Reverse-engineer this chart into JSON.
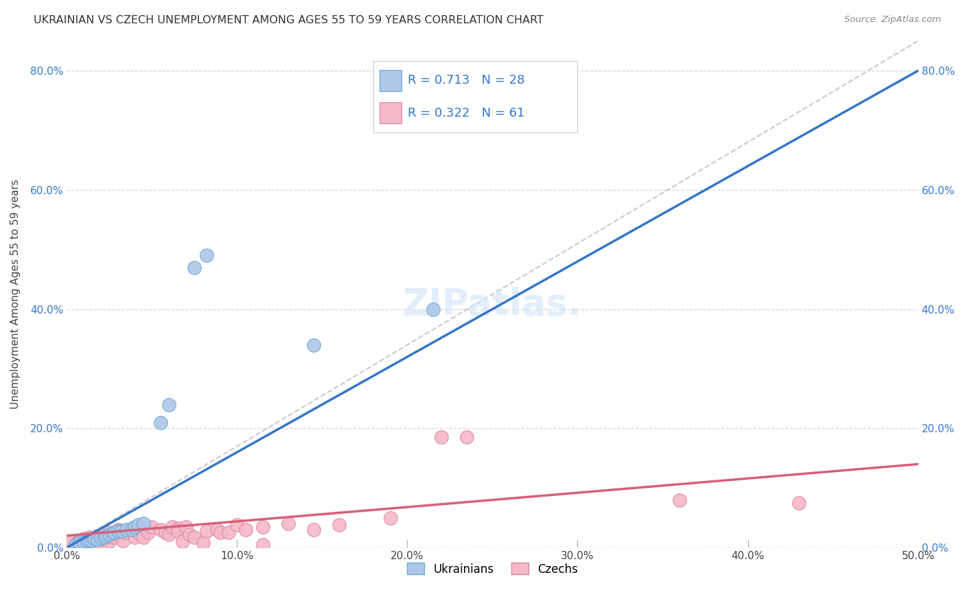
{
  "title": "UKRAINIAN VS CZECH UNEMPLOYMENT AMONG AGES 55 TO 59 YEARS CORRELATION CHART",
  "source": "Source: ZipAtlas.com",
  "ylabel": "Unemployment Among Ages 55 to 59 years",
  "xlim": [
    0.0,
    0.5
  ],
  "ylim": [
    0.0,
    0.85
  ],
  "xticks": [
    0.0,
    0.1,
    0.2,
    0.3,
    0.4,
    0.5
  ],
  "yticks": [
    0.0,
    0.2,
    0.4,
    0.6,
    0.8
  ],
  "background_color": "#ffffff",
  "grid_color": "#cccccc",
  "ukrainian_color": "#aec6e8",
  "czech_color": "#f4b8c8",
  "ukrainian_edge_color": "#6aaad4",
  "czech_edge_color": "#d888a0",
  "ukrainian_line_color": "#3577c8",
  "czech_line_color": "#d8607a",
  "diagonal_color": "#b8b8b8",
  "tick_color": "#3577c8",
  "label_color": "#444444",
  "title_color": "#333333",
  "source_color": "#888888",
  "ukrainians_label": "Ukrainians",
  "czechs_label": "Czechs",
  "ukrainian_R": 0.713,
  "ukrainian_N": 28,
  "czech_R": 0.322,
  "czech_N": 61,
  "ukr_line_x": [
    0.0,
    0.5
  ],
  "ukr_line_y": [
    0.0,
    0.8
  ],
  "cze_line_x": [
    0.0,
    0.5
  ],
  "cze_line_y": [
    0.02,
    0.14
  ],
  "ukrainian_points": [
    [
      0.005,
      0.005
    ],
    [
      0.007,
      0.006
    ],
    [
      0.008,
      0.008
    ],
    [
      0.01,
      0.008
    ],
    [
      0.012,
      0.01
    ],
    [
      0.013,
      0.012
    ],
    [
      0.015,
      0.012
    ],
    [
      0.016,
      0.015
    ],
    [
      0.018,
      0.014
    ],
    [
      0.02,
      0.016
    ],
    [
      0.022,
      0.018
    ],
    [
      0.023,
      0.02
    ],
    [
      0.025,
      0.022
    ],
    [
      0.027,
      0.024
    ],
    [
      0.028,
      0.026
    ],
    [
      0.03,
      0.028
    ],
    [
      0.032,
      0.028
    ],
    [
      0.035,
      0.03
    ],
    [
      0.038,
      0.03
    ],
    [
      0.04,
      0.035
    ],
    [
      0.042,
      0.038
    ],
    [
      0.045,
      0.04
    ],
    [
      0.055,
      0.21
    ],
    [
      0.06,
      0.24
    ],
    [
      0.075,
      0.47
    ],
    [
      0.082,
      0.49
    ],
    [
      0.145,
      0.34
    ],
    [
      0.215,
      0.4
    ]
  ],
  "czech_points": [
    [
      0.003,
      0.01
    ],
    [
      0.005,
      0.005
    ],
    [
      0.006,
      0.008
    ],
    [
      0.008,
      0.01
    ],
    [
      0.008,
      0.012
    ],
    [
      0.01,
      0.006
    ],
    [
      0.01,
      0.015
    ],
    [
      0.012,
      0.01
    ],
    [
      0.013,
      0.018
    ],
    [
      0.015,
      0.012
    ],
    [
      0.015,
      0.016
    ],
    [
      0.017,
      0.014
    ],
    [
      0.018,
      0.02
    ],
    [
      0.018,
      0.008
    ],
    [
      0.02,
      0.018
    ],
    [
      0.022,
      0.022
    ],
    [
      0.022,
      0.014
    ],
    [
      0.025,
      0.025
    ],
    [
      0.025,
      0.01
    ],
    [
      0.027,
      0.02
    ],
    [
      0.028,
      0.018
    ],
    [
      0.03,
      0.03
    ],
    [
      0.03,
      0.022
    ],
    [
      0.032,
      0.028
    ],
    [
      0.033,
      0.012
    ],
    [
      0.035,
      0.025
    ],
    [
      0.038,
      0.032
    ],
    [
      0.04,
      0.03
    ],
    [
      0.04,
      0.018
    ],
    [
      0.042,
      0.035
    ],
    [
      0.043,
      0.022
    ],
    [
      0.045,
      0.018
    ],
    [
      0.048,
      0.025
    ],
    [
      0.05,
      0.035
    ],
    [
      0.055,
      0.03
    ],
    [
      0.058,
      0.025
    ],
    [
      0.06,
      0.022
    ],
    [
      0.062,
      0.035
    ],
    [
      0.065,
      0.032
    ],
    [
      0.065,
      0.028
    ],
    [
      0.068,
      0.01
    ],
    [
      0.07,
      0.035
    ],
    [
      0.072,
      0.022
    ],
    [
      0.075,
      0.018
    ],
    [
      0.08,
      0.008
    ],
    [
      0.082,
      0.028
    ],
    [
      0.088,
      0.03
    ],
    [
      0.09,
      0.025
    ],
    [
      0.095,
      0.025
    ],
    [
      0.1,
      0.038
    ],
    [
      0.105,
      0.03
    ],
    [
      0.115,
      0.035
    ],
    [
      0.115,
      0.005
    ],
    [
      0.13,
      0.04
    ],
    [
      0.145,
      0.03
    ],
    [
      0.16,
      0.038
    ],
    [
      0.19,
      0.05
    ],
    [
      0.22,
      0.185
    ],
    [
      0.235,
      0.185
    ],
    [
      0.36,
      0.08
    ],
    [
      0.43,
      0.075
    ]
  ]
}
